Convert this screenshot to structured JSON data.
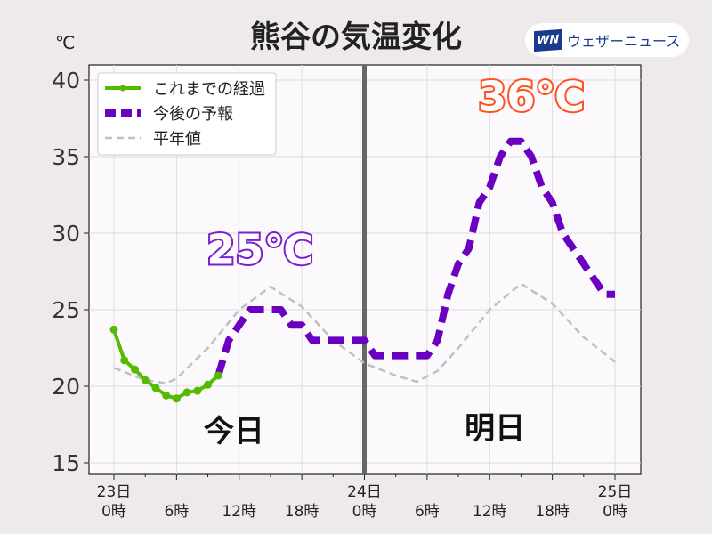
{
  "title": "熊谷の気温変化",
  "unit": "℃",
  "logo": {
    "mark": "WN",
    "text": "ウェザーニュース"
  },
  "chart_data": {
    "type": "line",
    "title": "熊谷の気温変化",
    "ylabel": "℃",
    "ylim": [
      14.5,
      40.8
    ],
    "xlim": [
      -1.5,
      50
    ],
    "yticks": [
      15,
      20,
      25,
      30,
      35,
      40
    ],
    "xticks": [
      {
        "x": 0,
        "label": [
          "23日",
          "0時"
        ]
      },
      {
        "x": 6,
        "label": [
          "",
          "6時"
        ]
      },
      {
        "x": 12,
        "label": [
          "",
          "12時"
        ]
      },
      {
        "x": 18,
        "label": [
          "",
          "18時"
        ]
      },
      {
        "x": 24,
        "label": [
          "24日",
          "0時"
        ]
      },
      {
        "x": 30,
        "label": [
          "",
          "6時"
        ]
      },
      {
        "x": 36,
        "label": [
          "",
          "12時"
        ]
      },
      {
        "x": 42,
        "label": [
          "",
          "18時"
        ]
      },
      {
        "x": 48,
        "label": [
          "25日",
          "0時"
        ]
      }
    ],
    "legend_position": "top-left",
    "series": [
      {
        "name": "これまでの経過",
        "color": "#55bb00",
        "style": "solid-markers",
        "x": [
          0,
          1,
          2,
          3,
          4,
          5,
          6,
          7,
          8,
          9,
          10
        ],
        "values": [
          23.7,
          21.7,
          21.1,
          20.4,
          19.9,
          19.4,
          19.2,
          19.6,
          19.7,
          20.1,
          20.7
        ]
      },
      {
        "name": "今後の予報",
        "color": "#6a00c0",
        "style": "dashed-thick",
        "x": [
          10,
          11,
          12,
          13,
          14,
          15,
          16,
          17,
          18,
          19,
          20,
          21,
          22,
          23,
          24,
          25,
          26,
          27,
          28,
          29,
          30,
          31,
          32,
          33,
          34,
          35,
          36,
          37,
          38,
          39,
          40,
          41,
          42,
          43,
          44,
          45,
          46,
          47,
          48
        ],
        "values": [
          20.7,
          23,
          24,
          25,
          25,
          25,
          25,
          24,
          24,
          23,
          23,
          23,
          23,
          23,
          23,
          22,
          22,
          22,
          22,
          22,
          22,
          23,
          26,
          28,
          29,
          32,
          33,
          35,
          36,
          36,
          35,
          33,
          32,
          30,
          29,
          28,
          27,
          26,
          26
        ]
      },
      {
        "name": "平年値",
        "color": "#c0c0c0",
        "style": "dashed-thin",
        "x": [
          0,
          3,
          5,
          6,
          9,
          12,
          15,
          18,
          21,
          24,
          27,
          29,
          31,
          33,
          36,
          39,
          42,
          45,
          48
        ],
        "values": [
          21.2,
          20.4,
          20.2,
          20.5,
          22.5,
          25,
          26.5,
          25.2,
          23,
          21.5,
          20.7,
          20.3,
          21,
          22.5,
          25,
          26.7,
          25.4,
          23.2,
          21.6
        ]
      }
    ],
    "divider_x": 24,
    "annotations": [
      {
        "text": "25℃",
        "x": 14,
        "y": 28,
        "color": "#7a20d0"
      },
      {
        "text": "36℃",
        "x": 40,
        "y": 38,
        "color": "#ff5020"
      },
      {
        "text": "今日",
        "x": 11.5,
        "y": 16.4
      },
      {
        "text": "明日",
        "x": 36.5,
        "y": 16.6
      }
    ]
  }
}
